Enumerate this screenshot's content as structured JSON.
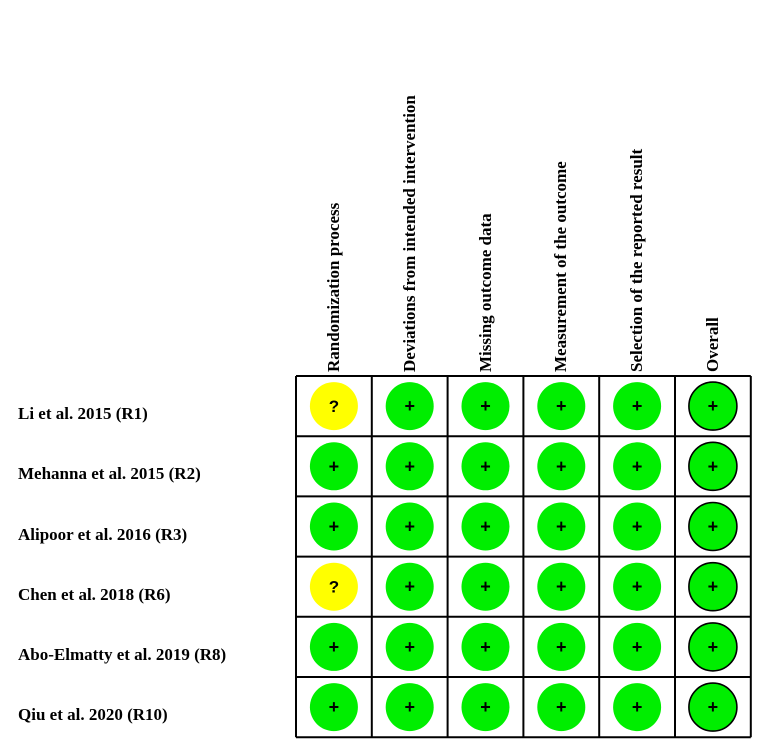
{
  "domains": [
    "Randomization process",
    "Deviations from intended intervention",
    "Missing outcome data",
    "Measurement of the outcome",
    "Selection of the reported result",
    "Overall"
  ],
  "studies": [
    {
      "label": "Li et al. 2015 (R1)",
      "judgements": [
        "?",
        "+",
        "+",
        "+",
        "+",
        "+"
      ]
    },
    {
      "label": "Mehanna et al. 2015 (R2)",
      "judgements": [
        "+",
        "+",
        "+",
        "+",
        "+",
        "+"
      ]
    },
    {
      "label": "Alipoor et al. 2016 (R3)",
      "judgements": [
        "+",
        "+",
        "+",
        "+",
        "+",
        "+"
      ]
    },
    {
      "label": "Chen et al. 2018 (R6)",
      "judgements": [
        "?",
        "+",
        "+",
        "+",
        "+",
        "+"
      ]
    },
    {
      "label": "Abo-Elmatty et al. 2019 (R8)",
      "judgements": [
        "+",
        "+",
        "+",
        "+",
        "+",
        "+"
      ]
    },
    {
      "label": "Qiu et al. 2020 (R10)",
      "judgements": [
        "+",
        "+",
        "+",
        "+",
        "+",
        "+"
      ]
    }
  ],
  "colors": {
    "low_risk": "#00ee00",
    "some_concerns": "#ffff00",
    "grid_line": "#000000"
  }
}
